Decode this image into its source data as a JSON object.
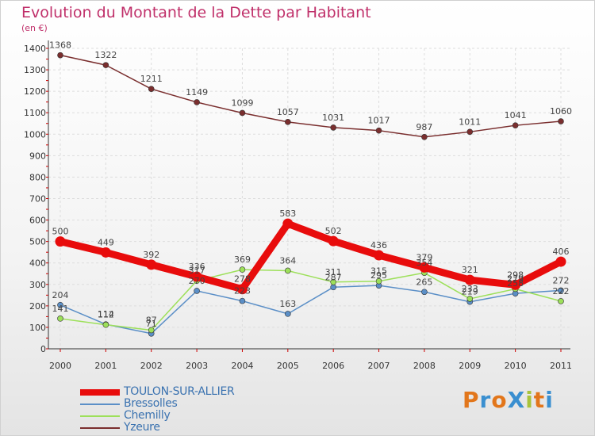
{
  "header": {
    "title": "Evolution du Montant de la Dette par Habitant",
    "subtitle": "(en €)"
  },
  "colors": {
    "title": "#c0306a",
    "grid": "#dddddd",
    "axis": "#333333",
    "tick_red": "#cc0000"
  },
  "logo": {
    "text": "ProXiti",
    "letters": [
      {
        "ch": "P",
        "color": "#e2761b"
      },
      {
        "ch": "r",
        "color": "#3a8fd0"
      },
      {
        "ch": "o",
        "color": "#e2761b"
      },
      {
        "ch": "X",
        "color": "#3a8fd0"
      },
      {
        "ch": "i",
        "color": "#a8c33a"
      },
      {
        "ch": "t",
        "color": "#e2761b"
      },
      {
        "ch": "i",
        "color": "#3a8fd0"
      }
    ]
  },
  "chart_data": {
    "type": "line",
    "title": "Evolution du Montant de la Dette par Habitant",
    "subtitle": "(en €)",
    "x": [
      "2000",
      "2001",
      "2002",
      "2003",
      "2004",
      "2005",
      "2006",
      "2007",
      "2008",
      "2009",
      "2010",
      "2011"
    ],
    "ylim": [
      0,
      1400
    ],
    "yticks": [
      0,
      100,
      200,
      300,
      400,
      500,
      600,
      700,
      800,
      900,
      1000,
      1100,
      1200,
      1300,
      1400
    ],
    "grid": true,
    "legend_position": "bottom-left",
    "series": [
      {
        "name": "TOULON-SUR-ALLIER",
        "color": "#e80c0c",
        "width": 9,
        "values": [
          500,
          449,
          392,
          336,
          278,
          583,
          502,
          436,
          379,
          321,
          298,
          406
        ]
      },
      {
        "name": "Bressolles",
        "color": "#5b8fc7",
        "width": 1.5,
        "values": [
          204,
          114,
          71,
          270,
          223,
          163,
          287,
          295,
          265,
          219,
          258,
          272
        ]
      },
      {
        "name": "Chemilly",
        "color": "#9de05a",
        "width": 1.5,
        "values": [
          141,
          112,
          87,
          317,
          369,
          364,
          311,
          315,
          354,
          233,
          279,
          222
        ]
      },
      {
        "name": "Yzeure",
        "color": "#7a2e2e",
        "width": 1.5,
        "values": [
          1368,
          1322,
          1211,
          1149,
          1099,
          1057,
          1031,
          1017,
          987,
          1011,
          1041,
          1060
        ]
      }
    ]
  }
}
